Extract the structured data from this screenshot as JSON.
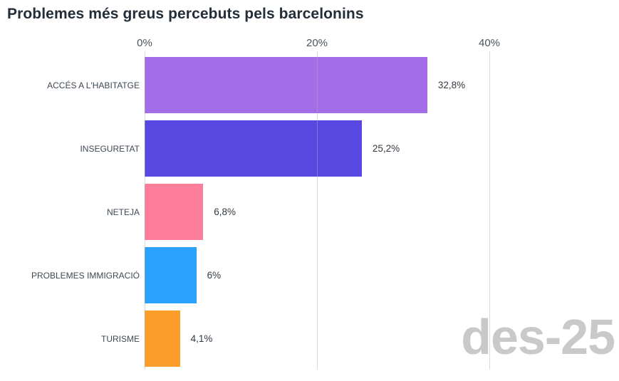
{
  "title": "Problemes més greus percebuts pels barcelonins",
  "watermark": "des-25",
  "chart_data": {
    "type": "bar",
    "orientation": "horizontal",
    "title": "Problemes més greus percebuts pels barcelonins",
    "categories": [
      "ACCÉS A L'HABITATGE",
      "INSEGURETAT",
      "NETEJA",
      "PROBLEMES IMMIGRACIÓ",
      "TURISME"
    ],
    "values": [
      32.8,
      25.2,
      6.8,
      6.0,
      4.1
    ],
    "value_labels": [
      "32,8%",
      "25,2%",
      "6,8%",
      "6%",
      "4,1%"
    ],
    "bar_colors": [
      "#a46de8",
      "#5847e0",
      "#fd7e9b",
      "#2aa2fb",
      "#fb9d28"
    ],
    "x_axis": {
      "min": 0,
      "max": 40,
      "ticks": [
        0,
        20,
        40
      ],
      "tick_labels": [
        "0%",
        "20%",
        "40%"
      ],
      "position": "top"
    },
    "grid": true,
    "legend": false,
    "annotation": "des-25",
    "colors": {
      "title_text": "#242e38",
      "axis_text": "#4a545e",
      "category_text": "#3e4953",
      "value_text": "#333b42",
      "gridline": "#e2e2e2",
      "watermark": "#c9c9c9",
      "background": "#ffffff"
    }
  }
}
